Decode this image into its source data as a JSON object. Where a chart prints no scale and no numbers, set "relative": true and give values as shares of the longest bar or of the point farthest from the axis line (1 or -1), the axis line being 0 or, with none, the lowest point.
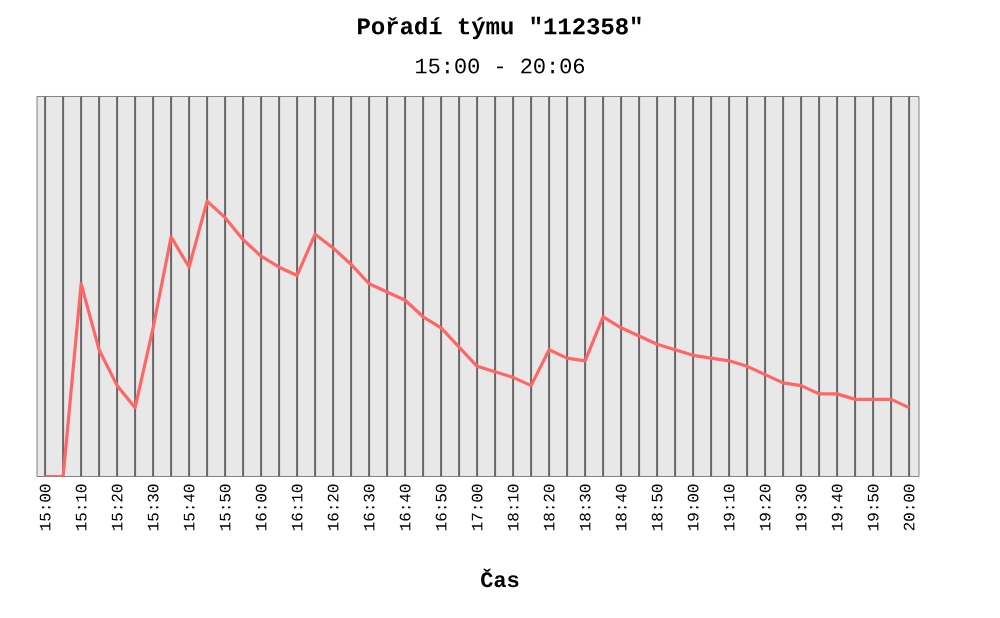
{
  "chart_data": {
    "type": "line",
    "title": "Pořadí týmu \"112358\"",
    "subtitle": "15:00 - 20:06",
    "xlabel": "Čas",
    "categories": [
      "15:00",
      null,
      "15:10",
      null,
      "15:20",
      null,
      "15:30",
      null,
      "15:40",
      null,
      "15:50",
      null,
      "16:00",
      null,
      "16:10",
      null,
      "16:20",
      null,
      "16:30",
      null,
      "16:40",
      null,
      "16:50",
      null,
      "17:00",
      null,
      "18:10",
      null,
      "18:20",
      null,
      "18:30",
      null,
      "18:40",
      null,
      "18:50",
      null,
      "19:00",
      null,
      "19:10",
      null,
      "19:20",
      null,
      "19:30",
      null,
      "19:40",
      null,
      "19:50",
      null,
      "20:00"
    ],
    "relative": true,
    "series": [
      {
        "color": "#ff6666",
        "values": [
          0,
          0,
          0.7,
          0.46,
          0.33,
          0.25,
          0.54,
          0.87,
          0.76,
          1,
          0.94,
          0.86,
          0.8,
          0.76,
          0.73,
          0.88,
          0.83,
          0.77,
          0.7,
          0.67,
          0.64,
          0.58,
          0.54,
          0.47,
          0.4,
          0.38,
          0.36,
          0.33,
          0.46,
          0.43,
          0.42,
          0.58,
          0.54,
          0.51,
          0.48,
          0.46,
          0.44,
          0.43,
          0.42,
          0.4,
          0.37,
          0.34,
          0.33,
          0.3,
          0.3,
          0.28,
          0.28,
          0.28,
          0.25
        ]
      }
    ],
    "grid": "x",
    "line_style": "solid",
    "marker": "none"
  }
}
